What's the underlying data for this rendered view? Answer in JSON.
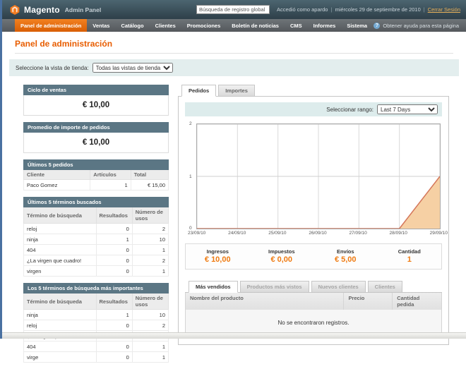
{
  "header": {
    "logo_text": "Magento",
    "logo_sub": "Admin Panel",
    "search_value": "Búsqueda de registro global",
    "logged_in_as": "Accedió como apardo",
    "separator": "|",
    "date": "miércoles 29 de septiembre de 2010",
    "logout_label": "Cerrar Sesión"
  },
  "nav": {
    "items": [
      {
        "label": "Panel de administración",
        "active": true
      },
      {
        "label": "Ventas",
        "active": false
      },
      {
        "label": "Catálogo",
        "active": false
      },
      {
        "label": "Clientes",
        "active": false
      },
      {
        "label": "Promociones",
        "active": false
      },
      {
        "label": "Boletín de noticias",
        "active": false
      },
      {
        "label": "CMS",
        "active": false
      },
      {
        "label": "Informes",
        "active": false
      },
      {
        "label": "Sistema",
        "active": false
      }
    ],
    "help_label": "Obtener ayuda para esta página"
  },
  "page": {
    "title": "Panel de administración",
    "store_view_label": "Seleccione la vista de tienda:",
    "store_view_value": "Todas las vistas de tienda"
  },
  "sidebar": {
    "lifetime": {
      "title": "Ciclo de ventas",
      "value": "€ 10,00"
    },
    "average": {
      "title": "Promedio de importe de pedidos",
      "value": "€ 10,00"
    },
    "last_orders": {
      "title": "Últimos 5 pedidos",
      "columns": [
        "Cliente",
        "Artículos",
        "Total"
      ],
      "rows": [
        [
          "Paco Gomez",
          "1",
          "€ 15,00"
        ]
      ]
    },
    "last_terms": {
      "title": "Últimos 5 términos buscados",
      "columns": [
        "Término de búsqueda",
        "Resultados",
        "Número de usos"
      ],
      "rows": [
        [
          "reloj",
          "0",
          "2"
        ],
        [
          "ninja",
          "1",
          "10"
        ],
        [
          "404",
          "0",
          "1"
        ],
        [
          "¿La virgen que cuadro!",
          "0",
          "2"
        ],
        [
          "virgen",
          "0",
          "1"
        ]
      ]
    },
    "top_terms": {
      "title": "Los 5 términos de búsqueda más importantes",
      "columns": [
        "Término de búsqueda",
        "Resultados",
        "Número de usos"
      ],
      "rows": [
        [
          "ninja",
          "1",
          "10"
        ],
        [
          "reloj",
          "0",
          "2"
        ],
        [
          "¿La virgen que cuadro!",
          "0",
          "2"
        ],
        [
          "404",
          "0",
          "1"
        ],
        [
          "virge",
          "0",
          "1"
        ]
      ]
    }
  },
  "dashboard": {
    "tabs": [
      {
        "label": "Pedidos",
        "active": true
      },
      {
        "label": "Importes",
        "active": false
      }
    ],
    "range_label": "Seleccionar rango:",
    "range_value": "Last 7 Days",
    "stats": [
      {
        "label": "Ingresos",
        "value": "€ 10,00"
      },
      {
        "label": "Impuestos",
        "value": "€ 0,00"
      },
      {
        "label": "Envíos",
        "value": "€ 5,00"
      },
      {
        "label": "Cantidad",
        "value": "1"
      }
    ],
    "bottom_tabs": [
      {
        "label": "Más vendidos",
        "active": true
      },
      {
        "label": "Productos más vistos",
        "active": false
      },
      {
        "label": "Nuevos clientes",
        "active": false
      },
      {
        "label": "Clientes",
        "active": false
      }
    ],
    "products_table": {
      "columns": [
        "Nombre del producto",
        "Precio",
        "Cantidad pedida"
      ],
      "empty_text": "No se encontraron registros."
    }
  },
  "chart_data": {
    "type": "area",
    "series": [
      {
        "name": "Pedidos",
        "values": [
          0,
          0,
          0,
          0,
          0,
          0,
          1
        ]
      }
    ],
    "x": [
      "23/09/10",
      "24/09/10",
      "25/09/10",
      "26/09/10",
      "27/09/10",
      "28/09/10",
      "29/09/10"
    ],
    "ylim": [
      0,
      2
    ],
    "yticks": [
      "0",
      "1",
      "2"
    ],
    "grid": true,
    "legend": "none",
    "line_color": "#d4765a",
    "fill_color": "#f6d0a4"
  },
  "colors": {
    "accent_orange": "#eb5e00",
    "header_bg": "#3d525d",
    "nav_active": "#e96d10",
    "panel_header_bg": "#5b7684"
  }
}
